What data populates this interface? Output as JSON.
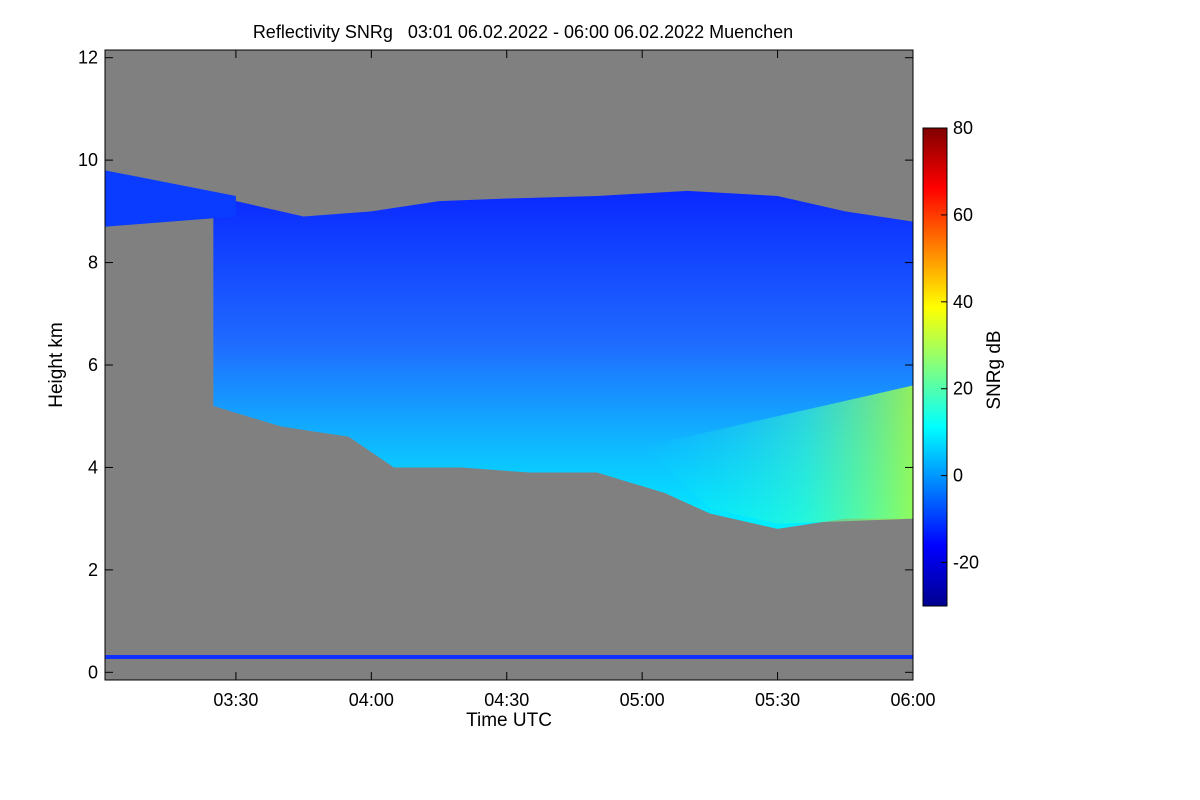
{
  "chart_data": {
    "type": "heatmap",
    "title": "Reflectivity SNRg   03:01 06.02.2022 - 06:00 06.02.2022 Muenchen",
    "xlabel": "Time UTC",
    "ylabel": "Height km",
    "x_ticks": [
      "03:30",
      "04:00",
      "04:30",
      "05:00",
      "05:30",
      "06:00"
    ],
    "x_tick_minutes": [
      30,
      60,
      90,
      120,
      150,
      180
    ],
    "xlim_minutes_after_0300": [
      1,
      180
    ],
    "y_ticks": [
      "0",
      "2",
      "4",
      "6",
      "8",
      "10",
      "12"
    ],
    "ylim": [
      -0.15,
      12.15
    ],
    "colorbar": {
      "label": "SNRg dB",
      "ticks": [
        "80",
        "60",
        "40",
        "20",
        "0",
        "-20"
      ],
      "range": [
        -30,
        80
      ],
      "colors": [
        "#00008f",
        "#0000ff",
        "#0080ff",
        "#00ffff",
        "#80ff80",
        "#ffff00",
        "#ff8000",
        "#ff0000",
        "#800000"
      ]
    },
    "background_color": "#808080",
    "cloud": {
      "top_km": [
        [
          25,
          9.3
        ],
        [
          35,
          9.1
        ],
        [
          45,
          8.9
        ],
        [
          60,
          9.0
        ],
        [
          75,
          9.2
        ],
        [
          90,
          9.25
        ],
        [
          110,
          9.3
        ],
        [
          130,
          9.4
        ],
        [
          150,
          9.3
        ],
        [
          165,
          9.0
        ],
        [
          180,
          8.8
        ]
      ],
      "base_km": [
        [
          25,
          5.2
        ],
        [
          40,
          4.8
        ],
        [
          55,
          4.6
        ],
        [
          65,
          4.0
        ],
        [
          80,
          4.0
        ],
        [
          95,
          3.9
        ],
        [
          110,
          3.9
        ],
        [
          125,
          3.5
        ],
        [
          135,
          3.1
        ],
        [
          150,
          2.8
        ],
        [
          165,
          3.0
        ],
        [
          180,
          3.0
        ]
      ],
      "max_snr_db_approx": 35
    },
    "ground_line_km": 0.3
  }
}
